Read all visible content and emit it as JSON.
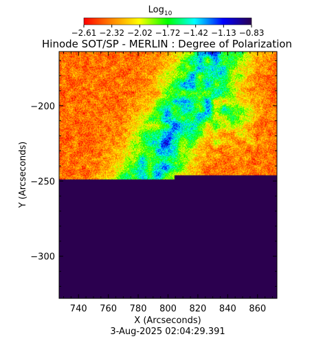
{
  "chart_data": {
    "type": "heatmap",
    "title": "Hinode SOT/SP - MERLIN : Degree of Polarization",
    "xlabel": "X (Arcseconds)",
    "ylabel": "Y (Arcseconds)",
    "timestamp": "3-Aug-2025 02:04:29.391",
    "xlim": [
      727,
      873
    ],
    "ylim": [
      -328,
      -164
    ],
    "x_ticks": [
      740,
      760,
      780,
      800,
      820,
      840,
      860
    ],
    "x_tick_labels": [
      "740",
      "760",
      "780",
      "800",
      "820",
      "840",
      "860"
    ],
    "y_ticks": [
      -200,
      -250,
      -300
    ],
    "y_tick_labels": [
      "−200",
      "−250",
      "−300"
    ],
    "colorbar": {
      "label": "Log",
      "label_sub": "10",
      "range": [
        -2.61,
        -0.83
      ],
      "tick_labels": [
        "−2.61",
        "−2.32",
        "−2.02",
        "−1.72",
        "−1.42",
        "−1.13",
        "−0.83"
      ],
      "colormap": "rainbow",
      "colors": [
        "#ff0000",
        "#ff8000",
        "#ffff00",
        "#00ff00",
        "#00ffff",
        "#0000ff",
        "#2b004f"
      ]
    },
    "features": [
      {
        "description": "diagonal band of enhanced polarization from lower-left to upper-right",
        "max_log": -1.0
      },
      {
        "description": "concentrated strong-polarization clumps near x=810-850, y=-190 to -240",
        "max_log": -0.9
      },
      {
        "description": "background quiet region",
        "typical_log": -2.5
      }
    ]
  }
}
